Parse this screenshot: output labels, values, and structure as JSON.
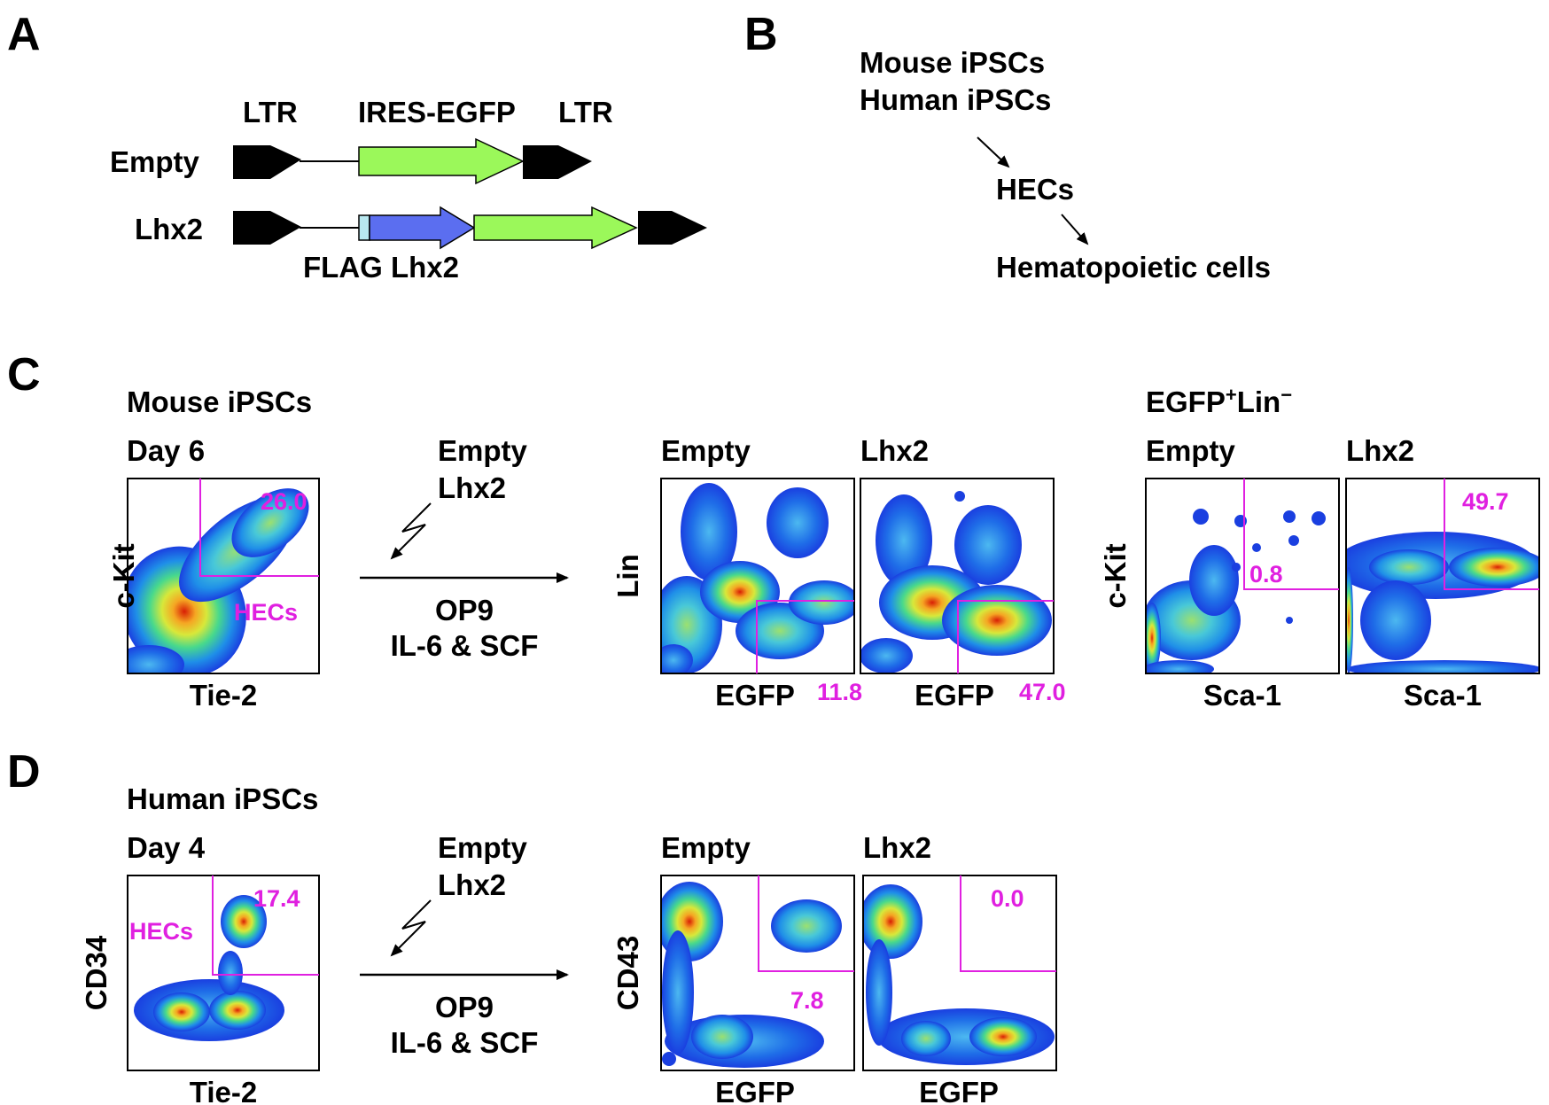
{
  "panels": {
    "a": {
      "letter": "A",
      "ltr_left": "LTR",
      "ires_egfp": "IRES-EGFP",
      "ltr_right": "LTR",
      "row_empty": "Empty",
      "row_lhx2": "Lhx2",
      "flag_lhx2": "FLAG Lhx2"
    },
    "b": {
      "letter": "B",
      "line1": "Mouse iPSCs",
      "line2": "Human iPSCs",
      "line3": "HECs",
      "line4": "Hematopoietic cells"
    },
    "c": {
      "letter": "C",
      "title": "Mouse iPSCs",
      "day": "Day 6",
      "y1": "c-Kit",
      "x1": "Tie-2",
      "gate1": "26.0",
      "hecs": "HECs",
      "transduce1": "Empty",
      "transduce2": "Lhx2",
      "culture1": "OP9",
      "culture2": "IL-6 & SCF",
      "empty": "Empty",
      "lhx2": "Lhx2",
      "ylin": "Lin",
      "xegfp": "EGFP",
      "gate_empty": "11.8",
      "gate_lhx2": "47.0",
      "subset_egfp": "EGFP",
      "subset_sup1": "+",
      "subset_lin": "Lin",
      "subset_sup2": "−",
      "empty2": "Empty",
      "lhx22": "Lhx2",
      "ykit": "c-Kit",
      "xsca": "Sca-1",
      "gate_sca_empty": "0.8",
      "gate_sca_lhx2": "49.7"
    },
    "d": {
      "letter": "D",
      "title": "Human iPSCs",
      "day": "Day 4",
      "y1": "CD34",
      "x1": "Tie-2",
      "gate1": "17.4",
      "hecs": "HECs",
      "transduce1": "Empty",
      "transduce2": "Lhx2",
      "culture1": "OP9",
      "culture2": "IL-6 & SCF",
      "empty": "Empty",
      "lhx2": "Lhx2",
      "ycd43": "CD43",
      "xegfp": "EGFP",
      "gate_empty": "7.8",
      "gate_lhx2": "0.0"
    }
  }
}
